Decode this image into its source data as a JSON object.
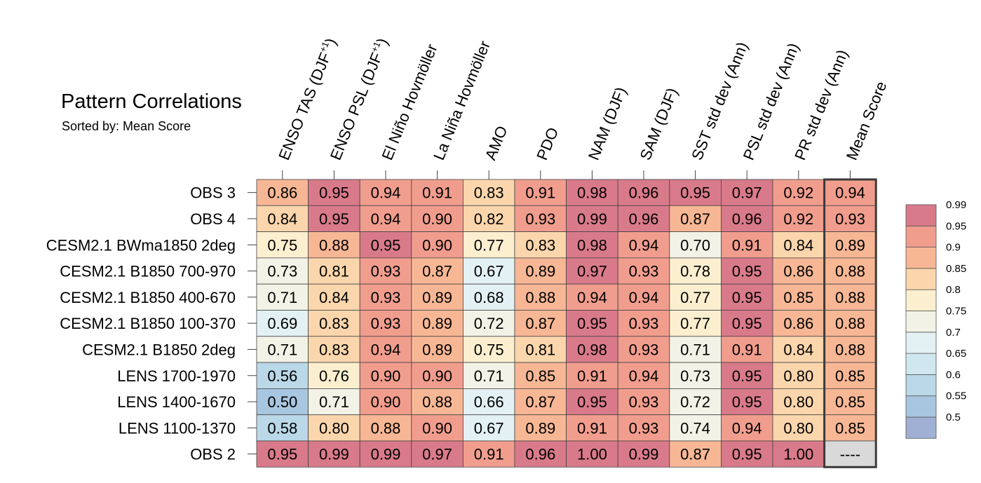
{
  "chart_data": {
    "type": "heatmap",
    "title": "Pattern Correlations",
    "subtitle": "Sorted by: Mean Score",
    "columns": [
      {
        "base": "ENSO TAS (DJF",
        "sup": "+1",
        "tail": ")"
      },
      {
        "base": "ENSO PSL (DJF",
        "sup": "+1",
        "tail": ")"
      },
      {
        "base": "El Niño Hovmöller",
        "sup": "",
        "tail": ""
      },
      {
        "base": "La Niña Hovmöller",
        "sup": "",
        "tail": ""
      },
      {
        "base": "AMO",
        "sup": "",
        "tail": ""
      },
      {
        "base": "PDO",
        "sup": "",
        "tail": ""
      },
      {
        "base": "NAM (DJF)",
        "sup": "",
        "tail": ""
      },
      {
        "base": "SAM (DJF)",
        "sup": "",
        "tail": ""
      },
      {
        "base": "SST std dev (Ann)",
        "sup": "",
        "tail": ""
      },
      {
        "base": "PSL std dev (Ann)",
        "sup": "",
        "tail": ""
      },
      {
        "base": "PR std dev (Ann)",
        "sup": "",
        "tail": ""
      },
      {
        "base": "Mean Score",
        "sup": "",
        "tail": ""
      }
    ],
    "rows": [
      {
        "label": "OBS 3",
        "values": [
          "0.86",
          "0.95",
          "0.94",
          "0.91",
          "0.83",
          "0.91",
          "0.98",
          "0.96",
          "0.95",
          "0.97",
          "0.92",
          "0.94"
        ]
      },
      {
        "label": "OBS 4",
        "values": [
          "0.84",
          "0.95",
          "0.94",
          "0.90",
          "0.82",
          "0.93",
          "0.99",
          "0.96",
          "0.87",
          "0.96",
          "0.92",
          "0.93"
        ]
      },
      {
        "label": "CESM2.1 BWma1850 2deg",
        "values": [
          "0.75",
          "0.88",
          "0.95",
          "0.90",
          "0.77",
          "0.83",
          "0.98",
          "0.94",
          "0.70",
          "0.91",
          "0.84",
          "0.89"
        ]
      },
      {
        "label": "CESM2.1 B1850 700-970",
        "values": [
          "0.73",
          "0.81",
          "0.93",
          "0.87",
          "0.67",
          "0.89",
          "0.97",
          "0.93",
          "0.78",
          "0.95",
          "0.86",
          "0.88"
        ]
      },
      {
        "label": "CESM2.1 B1850 400-670",
        "values": [
          "0.71",
          "0.84",
          "0.93",
          "0.89",
          "0.68",
          "0.88",
          "0.94",
          "0.94",
          "0.77",
          "0.95",
          "0.85",
          "0.88"
        ]
      },
      {
        "label": "CESM2.1 B1850 100-370",
        "values": [
          "0.69",
          "0.83",
          "0.93",
          "0.89",
          "0.72",
          "0.87",
          "0.95",
          "0.93",
          "0.77",
          "0.95",
          "0.86",
          "0.88"
        ]
      },
      {
        "label": "CESM2.1 B1850 2deg",
        "values": [
          "0.71",
          "0.83",
          "0.94",
          "0.89",
          "0.75",
          "0.81",
          "0.98",
          "0.93",
          "0.71",
          "0.91",
          "0.84",
          "0.88"
        ]
      },
      {
        "label": "LENS 1700-1970",
        "values": [
          "0.56",
          "0.76",
          "0.90",
          "0.90",
          "0.71",
          "0.85",
          "0.91",
          "0.94",
          "0.73",
          "0.95",
          "0.80",
          "0.85"
        ]
      },
      {
        "label": "LENS 1400-1670",
        "values": [
          "0.50",
          "0.71",
          "0.90",
          "0.88",
          "0.66",
          "0.87",
          "0.95",
          "0.93",
          "0.72",
          "0.95",
          "0.80",
          "0.85"
        ]
      },
      {
        "label": "LENS 1100-1370",
        "values": [
          "0.58",
          "0.80",
          "0.88",
          "0.90",
          "0.67",
          "0.89",
          "0.91",
          "0.93",
          "0.74",
          "0.94",
          "0.80",
          "0.85"
        ]
      },
      {
        "label": "OBS 2",
        "values": [
          "0.95",
          "0.99",
          "0.99",
          "0.97",
          "0.91",
          "0.96",
          "1.00",
          "0.99",
          "0.87",
          "0.95",
          "1.00",
          "----"
        ]
      }
    ],
    "colorbar": {
      "levels": [
        0.5,
        0.55,
        0.6,
        0.65,
        0.7,
        0.75,
        0.8,
        0.85,
        0.9,
        0.95,
        0.99
      ],
      "labels": [
        "0.5",
        "0.55",
        "0.6",
        "0.65",
        "0.7",
        "0.75",
        "0.8",
        "0.85",
        "0.9",
        "0.95",
        "0.99"
      ],
      "colors": [
        "#9fb0d4",
        "#a9c6e0",
        "#bad8e8",
        "#d0e7ef",
        "#e4f1f4",
        "#f2f2e6",
        "#fcefd0",
        "#fbd6ac",
        "#f7b795",
        "#f19d8e",
        "#d97a8a"
      ]
    },
    "missing_color": "#d9d9d9",
    "mean_column_highlight": "#3b3b3b"
  }
}
